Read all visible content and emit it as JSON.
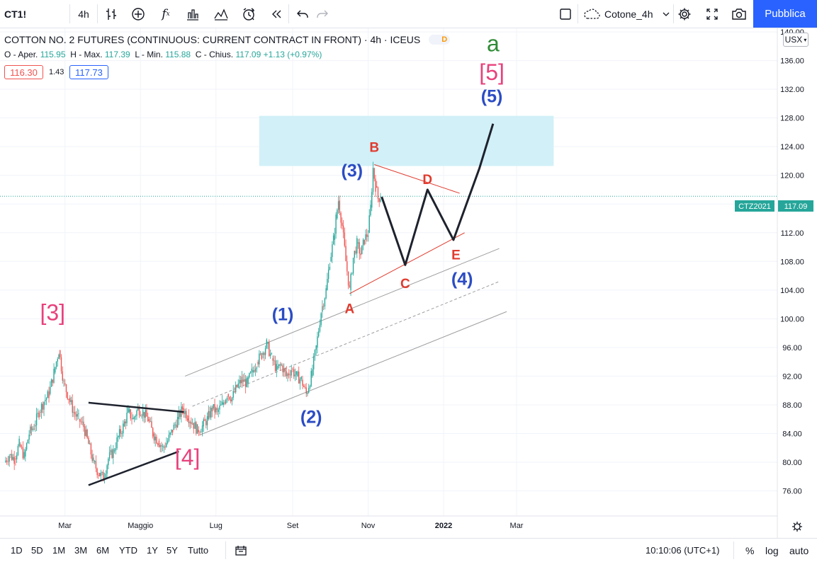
{
  "toolbar": {
    "symbol": "CT1!",
    "interval": "4h",
    "layout_name": "Cotone_4h",
    "publish_label": "Pubblica"
  },
  "legend": {
    "title": "COTTON NO. 2 FUTURES (CONTINUOUS: CURRENT CONTRACT IN FRONT) · 4h · ICEUS",
    "badge": "D",
    "o_label": "O - Aper.",
    "open": "115.95",
    "h_label": "H - Max.",
    "high": "117.39",
    "l_label": "L - Min.",
    "low": "115.88",
    "c_label": "C - Chius.",
    "close": "117.09",
    "change": "+1.13 (+0.97%)",
    "bid": "116.30",
    "spread": "1.43",
    "ask": "117.73"
  },
  "price_axis": {
    "currency": "USX",
    "ticks": [
      "76.00",
      "80.00",
      "84.00",
      "88.00",
      "92.00",
      "96.00",
      "100.00",
      "104.00",
      "108.00",
      "112.00",
      "116.00",
      "120.00",
      "124.00",
      "128.00",
      "132.00",
      "136.00",
      "140.00"
    ],
    "last_label": "CTZ2021",
    "last_value": "117.09"
  },
  "time_axis": {
    "ticks": [
      "Mar",
      "Maggio",
      "Lug",
      "Set",
      "Nov",
      "2022",
      "Mar"
    ]
  },
  "bottom_bar": {
    "ranges": [
      "1D",
      "5D",
      "1M",
      "3M",
      "6M",
      "YTD",
      "1Y",
      "5Y",
      "Tutto"
    ],
    "clock": "10:10:06 (UTC+1)",
    "pct": "%",
    "log": "log",
    "auto": "auto"
  },
  "colors": {
    "up": "#26a69a",
    "down": "#ef5350",
    "wave_magenta": "#e8417c",
    "wave_blue": "#2b4cc4",
    "wave_red": "#e03b2e",
    "wave_green": "#2e8b35",
    "zone": "#cdeef7",
    "accent": "#2962ff"
  },
  "chart_data": {
    "type": "line",
    "ylim": [
      72.5,
      140.5
    ],
    "price_path": [
      [
        "2021-01-11",
        80.0
      ],
      [
        "2021-01-15",
        81.0
      ],
      [
        "2021-01-19",
        80.5
      ],
      [
        "2021-01-23",
        82.5
      ],
      [
        "2021-01-27",
        80.8
      ],
      [
        "2021-01-31",
        84.0
      ],
      [
        "2021-02-04",
        85.0
      ],
      [
        "2021-02-08",
        87.0
      ],
      [
        "2021-02-12",
        88.5
      ],
      [
        "2021-02-16",
        89.5
      ],
      [
        "2021-02-20",
        92.5
      ],
      [
        "2021-02-24",
        95.6
      ],
      [
        "2021-02-28",
        91.0
      ],
      [
        "2021-03-04",
        89.0
      ],
      [
        "2021-03-08",
        87.0
      ],
      [
        "2021-03-12",
        86.0
      ],
      [
        "2021-03-16",
        85.0
      ],
      [
        "2021-03-20",
        82.5
      ],
      [
        "2021-03-24",
        80.0
      ],
      [
        "2021-03-28",
        78.5
      ],
      [
        "2021-04-01",
        77.8
      ],
      [
        "2021-04-05",
        80.5
      ],
      [
        "2021-04-09",
        81.5
      ],
      [
        "2021-04-13",
        83.5
      ],
      [
        "2021-04-17",
        85.0
      ],
      [
        "2021-04-21",
        87.0
      ],
      [
        "2021-04-25",
        86.0
      ],
      [
        "2021-04-29",
        87.5
      ],
      [
        "2021-05-03",
        87.0
      ],
      [
        "2021-05-07",
        86.0
      ],
      [
        "2021-05-11",
        84.0
      ],
      [
        "2021-05-15",
        83.0
      ],
      [
        "2021-05-19",
        82.0
      ],
      [
        "2021-05-23",
        83.0
      ],
      [
        "2021-05-27",
        84.5
      ],
      [
        "2021-05-31",
        86.0
      ],
      [
        "2021-06-04",
        87.5
      ],
      [
        "2021-06-08",
        86.5
      ],
      [
        "2021-06-12",
        85.5
      ],
      [
        "2021-06-16",
        84.5
      ],
      [
        "2021-06-20",
        85.0
      ],
      [
        "2021-06-24",
        86.0
      ],
      [
        "2021-06-28",
        87.5
      ],
      [
        "2021-07-02",
        87.0
      ],
      [
        "2021-07-06",
        88.0
      ],
      [
        "2021-07-10",
        89.5
      ],
      [
        "2021-07-14",
        89.0
      ],
      [
        "2021-07-18",
        90.5
      ],
      [
        "2021-07-22",
        91.5
      ],
      [
        "2021-07-26",
        91.0
      ],
      [
        "2021-07-30",
        92.5
      ],
      [
        "2021-08-03",
        94.0
      ],
      [
        "2021-08-07",
        95.0
      ],
      [
        "2021-08-11",
        96.5
      ],
      [
        "2021-08-15",
        94.5
      ],
      [
        "2021-08-19",
        93.0
      ],
      [
        "2021-08-23",
        93.5
      ],
      [
        "2021-08-27",
        92.0
      ],
      [
        "2021-08-31",
        93.0
      ],
      [
        "2021-09-04",
        92.0
      ],
      [
        "2021-09-08",
        91.5
      ],
      [
        "2021-09-12",
        89.5
      ],
      [
        "2021-09-16",
        92.0
      ],
      [
        "2021-09-20",
        96.0
      ],
      [
        "2021-09-24",
        101.0
      ],
      [
        "2021-09-28",
        104.0
      ],
      [
        "2021-10-01",
        108.0
      ],
      [
        "2021-10-04",
        111.0
      ],
      [
        "2021-10-06",
        114.0
      ],
      [
        "2021-10-08",
        116.5
      ],
      [
        "2021-10-11",
        113.0
      ],
      [
        "2021-10-14",
        108.0
      ],
      [
        "2021-10-17",
        104.0
      ],
      [
        "2021-10-20",
        108.5
      ],
      [
        "2021-10-23",
        110.5
      ],
      [
        "2021-10-26",
        109.0
      ],
      [
        "2021-10-29",
        111.0
      ],
      [
        "2021-11-01",
        112.0
      ],
      [
        "2021-11-03",
        115.5
      ],
      [
        "2021-11-05",
        121.0
      ],
      [
        "2021-11-07",
        118.5
      ],
      [
        "2021-11-09",
        116.8
      ],
      [
        "2021-11-11",
        117.1
      ]
    ],
    "projection": [
      [
        "2021-11-12",
        117.0
      ],
      [
        "2021-12-01",
        107.5
      ],
      [
        "2021-12-19",
        118.0
      ],
      [
        "2022-01-09",
        111.0
      ],
      [
        "2022-01-30",
        121.0
      ],
      [
        "2022-02-10",
        127.2
      ]
    ],
    "triangle_left": {
      "upper": [
        [
          "2021-03-20",
          88.3
        ],
        [
          "2021-06-05",
          87.0
        ]
      ],
      "lower": [
        [
          "2021-03-20",
          76.8
        ],
        [
          "2021-06-01",
          81.5
        ]
      ]
    },
    "triangle_right": {
      "upper": [
        [
          "2021-11-06",
          121.5
        ],
        [
          "2022-01-14",
          117.5
        ]
      ],
      "lower": [
        [
          "2021-10-17",
          103.5
        ],
        [
          "2022-01-18",
          112.0
        ]
      ]
    },
    "channel": {
      "upper": [
        [
          "2021-06-06",
          92.0
        ],
        [
          "2022-02-15",
          109.8
        ]
      ],
      "mid": [
        [
          "2021-06-12",
          87.8
        ],
        [
          "2022-02-15",
          105.2
        ]
      ],
      "lower": [
        [
          "2021-06-18",
          83.8
        ],
        [
          "2022-02-21",
          101.0
        ]
      ]
    },
    "zone": {
      "x0": "2021-08-05",
      "x1": "2022-03-31",
      "y0": 121.3,
      "y1": 128.3
    },
    "labels": [
      {
        "t": "[3]",
        "d": "2021-02-19",
        "v": 99.8,
        "c": "wave_magenta",
        "s": 32
      },
      {
        "t": "[4]",
        "d": "2021-06-08",
        "v": 79.6,
        "c": "wave_magenta",
        "s": 32
      },
      {
        "t": "(1)",
        "d": "2021-08-24",
        "v": 99.8,
        "c": "wave_blue",
        "s": 25
      },
      {
        "t": "(2)",
        "d": "2021-09-16",
        "v": 85.5,
        "c": "wave_blue",
        "s": 25
      },
      {
        "t": "(3)",
        "d": "2021-10-19",
        "v": 119.8,
        "c": "wave_blue",
        "s": 25
      },
      {
        "t": "(4)",
        "d": "2022-01-16",
        "v": 104.7,
        "c": "wave_blue",
        "s": 25
      },
      {
        "t": "(5)",
        "d": "2022-02-09",
        "v": 130.2,
        "c": "wave_blue",
        "s": 25
      },
      {
        "t": "[5]",
        "d": "2022-02-09",
        "v": 133.3,
        "c": "wave_magenta",
        "s": 32
      },
      {
        "t": "a",
        "d": "2022-02-10",
        "v": 137.3,
        "c": "wave_green",
        "s": 32
      },
      {
        "t": "A",
        "d": "2021-10-17",
        "v": 100.8,
        "c": "wave_red",
        "s": 19
      },
      {
        "t": "B",
        "d": "2021-11-06",
        "v": 123.3,
        "c": "wave_red",
        "s": 19
      },
      {
        "t": "C",
        "d": "2021-12-01",
        "v": 104.3,
        "c": "wave_red",
        "s": 19
      },
      {
        "t": "D",
        "d": "2021-12-19",
        "v": 118.8,
        "c": "wave_red",
        "s": 19
      },
      {
        "t": "E",
        "d": "2022-01-11",
        "v": 108.3,
        "c": "wave_red",
        "s": 19
      }
    ]
  }
}
